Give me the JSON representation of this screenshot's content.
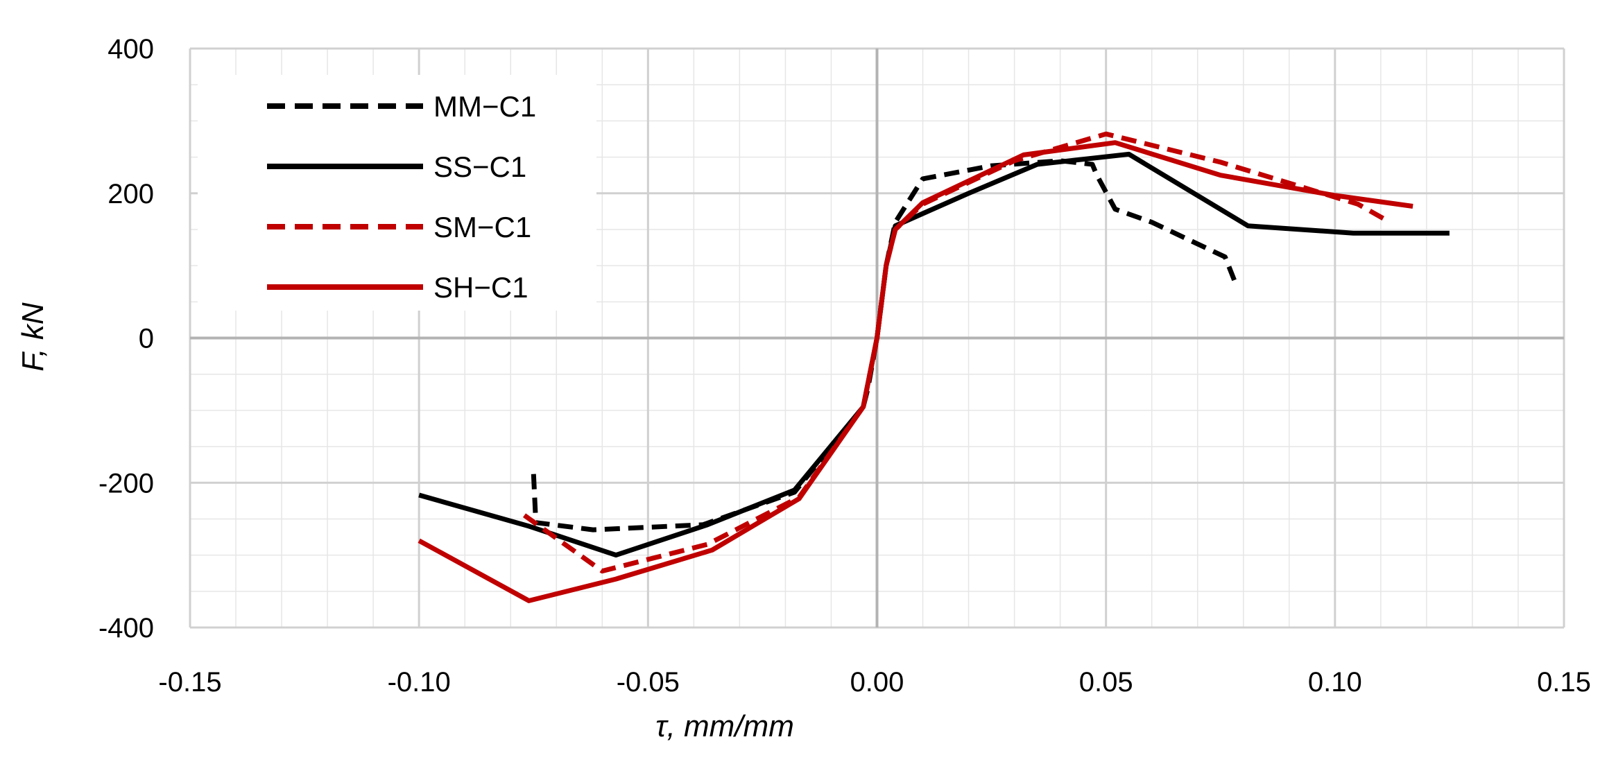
{
  "chart_data": {
    "type": "line",
    "title": "",
    "xlabel": "τ, mm/mm",
    "ylabel": "F, kN",
    "xlim": [
      -0.15,
      0.15
    ],
    "ylim": [
      -400,
      400
    ],
    "x_major_ticks": [
      -0.15,
      -0.1,
      -0.05,
      0.0,
      0.05,
      0.1,
      0.15
    ],
    "x_tick_labels": [
      "-0.15",
      "-0.10",
      "-0.05",
      "0.00",
      "0.05",
      "0.10",
      "0.15"
    ],
    "y_major_ticks": [
      -400,
      -200,
      0,
      200,
      400
    ],
    "y_tick_labels": [
      "-400",
      "-200",
      "0",
      "200",
      "400"
    ],
    "x_minor_step": 0.01,
    "y_minor_step": 50,
    "grid": true,
    "legend_position": "top-left",
    "series": [
      {
        "name": "MM−C1",
        "color": "#000000",
        "dash": "dashed",
        "points": [
          [
            -0.075,
            -188
          ],
          [
            -0.0745,
            -255
          ],
          [
            -0.062,
            -265
          ],
          [
            -0.038,
            -258
          ],
          [
            -0.018,
            -213
          ],
          [
            -0.003,
            -95
          ],
          [
            -0.002,
            -70
          ],
          [
            0.0,
            0
          ],
          [
            0.002,
            100
          ],
          [
            0.004,
            160
          ],
          [
            0.01,
            220
          ],
          [
            0.025,
            238
          ],
          [
            0.04,
            245
          ],
          [
            0.047,
            240
          ],
          [
            0.048,
            225
          ],
          [
            0.052,
            178
          ],
          [
            0.06,
            160
          ],
          [
            0.07,
            130
          ],
          [
            0.076,
            112
          ],
          [
            0.078,
            80
          ]
        ]
      },
      {
        "name": "SS−C1",
        "color": "#000000",
        "dash": "solid",
        "points": [
          [
            -0.1,
            -217
          ],
          [
            -0.076,
            -260
          ],
          [
            -0.057,
            -300
          ],
          [
            -0.037,
            -258
          ],
          [
            -0.018,
            -210
          ],
          [
            -0.003,
            -95
          ],
          [
            0.0,
            0
          ],
          [
            0.002,
            100
          ],
          [
            0.004,
            155
          ],
          [
            0.01,
            172
          ],
          [
            0.02,
            200
          ],
          [
            0.035,
            240
          ],
          [
            0.055,
            254
          ],
          [
            0.081,
            155
          ],
          [
            0.104,
            145
          ],
          [
            0.125,
            145
          ]
        ]
      },
      {
        "name": "SM−C1",
        "color": "#c00000",
        "dash": "dashed",
        "points": [
          [
            -0.077,
            -245
          ],
          [
            -0.06,
            -322
          ],
          [
            -0.037,
            -285
          ],
          [
            -0.017,
            -220
          ],
          [
            -0.003,
            -95
          ],
          [
            0.0,
            0
          ],
          [
            0.002,
            100
          ],
          [
            0.004,
            150
          ],
          [
            0.01,
            185
          ],
          [
            0.03,
            245
          ],
          [
            0.05,
            282
          ],
          [
            0.075,
            243
          ],
          [
            0.105,
            185
          ],
          [
            0.112,
            160
          ]
        ]
      },
      {
        "name": "SH−C1",
        "color": "#c00000",
        "dash": "solid",
        "points": [
          [
            -0.1,
            -280
          ],
          [
            -0.076,
            -363
          ],
          [
            -0.057,
            -333
          ],
          [
            -0.036,
            -293
          ],
          [
            -0.017,
            -222
          ],
          [
            -0.003,
            -95
          ],
          [
            0.0,
            0
          ],
          [
            0.002,
            100
          ],
          [
            0.004,
            150
          ],
          [
            0.01,
            187
          ],
          [
            0.032,
            253
          ],
          [
            0.052,
            270
          ],
          [
            0.075,
            225
          ],
          [
            0.1,
            197
          ],
          [
            0.117,
            182
          ]
        ]
      }
    ]
  }
}
